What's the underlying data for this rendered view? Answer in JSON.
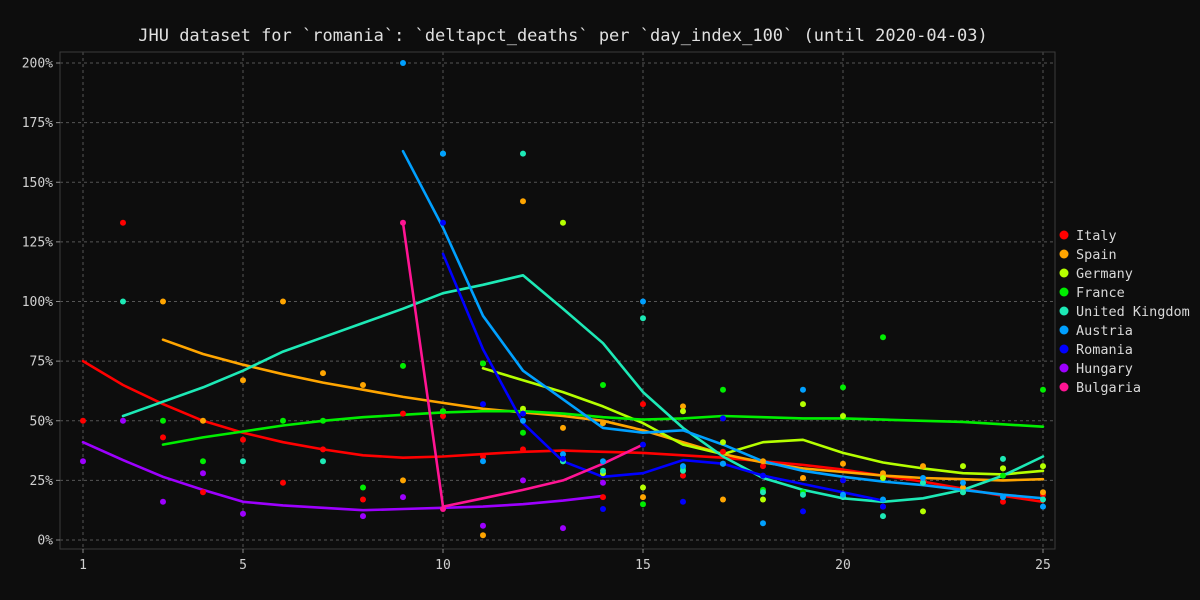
{
  "chart_data": {
    "type": "line",
    "title": "JHU dataset for `romania`: `deltapct_deaths` per `day_index_100` (until 2020-04-03)",
    "xlabel": "",
    "ylabel": "",
    "xlim": [
      1,
      25
    ],
    "ylim": [
      0,
      200
    ],
    "x_ticks": [
      1,
      5,
      10,
      15,
      20,
      25
    ],
    "y_ticks": [
      0,
      25,
      50,
      75,
      100,
      125,
      150,
      175,
      200
    ],
    "y_tick_labels": [
      "0%",
      "25%",
      "50%",
      "75%",
      "100%",
      "125%",
      "150%",
      "175%",
      "200%"
    ],
    "grid": true,
    "legend_position": "right",
    "series": [
      {
        "name": "Italy",
        "color": "#ff0000",
        "points": [
          [
            1,
            50
          ],
          [
            2,
            133
          ],
          [
            3,
            43
          ],
          [
            4,
            20
          ],
          [
            5,
            42
          ],
          [
            6,
            24
          ],
          [
            7,
            38
          ],
          [
            8,
            17
          ],
          [
            9,
            53
          ],
          [
            10,
            52
          ],
          [
            11,
            35
          ],
          [
            12,
            38
          ],
          [
            13,
            33
          ],
          [
            14,
            18
          ],
          [
            15,
            57
          ],
          [
            16,
            27
          ],
          [
            17,
            37
          ],
          [
            18,
            31
          ],
          [
            19,
            26
          ],
          [
            20,
            25
          ],
          [
            21,
            14
          ],
          [
            22,
            25
          ],
          [
            23,
            20
          ],
          [
            24,
            16
          ],
          [
            25,
            19
          ]
        ],
        "trend": [
          [
            1,
            75
          ],
          [
            2,
            65
          ],
          [
            3,
            57
          ],
          [
            4,
            50
          ],
          [
            5,
            45
          ],
          [
            6,
            41
          ],
          [
            7,
            38
          ],
          [
            8,
            35.5
          ],
          [
            9,
            34.5
          ],
          [
            10,
            35
          ],
          [
            11,
            36
          ],
          [
            12,
            37
          ],
          [
            13,
            37.5
          ],
          [
            14,
            37
          ],
          [
            15,
            36.5
          ],
          [
            16,
            35.5
          ],
          [
            17,
            34.5
          ],
          [
            18,
            33
          ],
          [
            19,
            31.5
          ],
          [
            20,
            29.5
          ],
          [
            21,
            27
          ],
          [
            22,
            24.5
          ],
          [
            23,
            21.5
          ],
          [
            24,
            18.5
          ],
          [
            25,
            16
          ]
        ]
      },
      {
        "name": "Spain",
        "color": "#ffa500",
        "points": [
          [
            3,
            100
          ],
          [
            4,
            50
          ],
          [
            5,
            67
          ],
          [
            6,
            100
          ],
          [
            7,
            70
          ],
          [
            8,
            65
          ],
          [
            9,
            25
          ],
          [
            10,
            54
          ],
          [
            11,
            2
          ],
          [
            12,
            142
          ],
          [
            13,
            47
          ],
          [
            14,
            49
          ],
          [
            15,
            18
          ],
          [
            16,
            56
          ],
          [
            17,
            17
          ],
          [
            18,
            33
          ],
          [
            19,
            26
          ],
          [
            20,
            32
          ],
          [
            21,
            28
          ],
          [
            22,
            31
          ],
          [
            23,
            22
          ],
          [
            24,
            30
          ],
          [
            25,
            20
          ]
        ],
        "trend": [
          [
            3,
            84
          ],
          [
            4,
            78
          ],
          [
            5,
            73.5
          ],
          [
            6,
            69.5
          ],
          [
            7,
            66
          ],
          [
            8,
            63
          ],
          [
            9,
            60
          ],
          [
            10,
            57.5
          ],
          [
            11,
            55
          ],
          [
            12,
            53.5
          ],
          [
            13,
            52
          ],
          [
            14,
            50
          ],
          [
            15,
            46
          ],
          [
            16,
            41
          ],
          [
            17,
            36
          ],
          [
            18,
            32.5
          ],
          [
            19,
            30
          ],
          [
            20,
            28.5
          ],
          [
            21,
            27
          ],
          [
            22,
            26
          ],
          [
            23,
            25.5
          ],
          [
            24,
            25
          ],
          [
            25,
            25.5
          ]
        ]
      },
      {
        "name": "Germany",
        "color": "#b5ff00",
        "points": [
          [
            11,
            74
          ],
          [
            12,
            55
          ],
          [
            13,
            133
          ],
          [
            14,
            28
          ],
          [
            15,
            22
          ],
          [
            16,
            54
          ],
          [
            17,
            41
          ],
          [
            18,
            17
          ],
          [
            19,
            57
          ],
          [
            20,
            52
          ],
          [
            21,
            26
          ],
          [
            22,
            12
          ],
          [
            23,
            31
          ],
          [
            24,
            30
          ],
          [
            25,
            31
          ]
        ],
        "trend": [
          [
            11,
            72
          ],
          [
            12,
            67
          ],
          [
            13,
            62
          ],
          [
            14,
            56
          ],
          [
            15,
            49
          ],
          [
            16,
            40
          ],
          [
            17,
            36
          ],
          [
            18,
            41
          ],
          [
            19,
            42
          ],
          [
            20,
            36.5
          ],
          [
            21,
            32.5
          ],
          [
            22,
            30
          ],
          [
            23,
            28
          ],
          [
            24,
            27.5
          ],
          [
            25,
            29
          ]
        ]
      },
      {
        "name": "France",
        "color": "#00ee00",
        "points": [
          [
            3,
            50
          ],
          [
            4,
            33
          ],
          [
            6,
            50
          ],
          [
            7,
            50
          ],
          [
            8,
            22
          ],
          [
            9,
            73
          ],
          [
            10,
            54
          ],
          [
            11,
            74
          ],
          [
            12,
            45
          ],
          [
            13,
            33
          ],
          [
            14,
            65
          ],
          [
            15,
            15
          ],
          [
            16,
            30
          ],
          [
            17,
            63
          ],
          [
            18,
            21
          ],
          [
            19,
            20
          ],
          [
            20,
            64
          ],
          [
            21,
            85
          ],
          [
            22,
            24
          ],
          [
            23,
            20
          ],
          [
            24,
            27
          ],
          [
            25,
            63
          ]
        ],
        "trend": [
          [
            3,
            40
          ],
          [
            4,
            43
          ],
          [
            5,
            45.5
          ],
          [
            6,
            48
          ],
          [
            7,
            50
          ],
          [
            8,
            51.5
          ],
          [
            9,
            52.5
          ],
          [
            10,
            53.5
          ],
          [
            11,
            54
          ],
          [
            12,
            54
          ],
          [
            13,
            53
          ],
          [
            14,
            51.5
          ],
          [
            15,
            50.5
          ],
          [
            16,
            51
          ],
          [
            17,
            52
          ],
          [
            18,
            51.5
          ],
          [
            19,
            51
          ],
          [
            20,
            51
          ],
          [
            21,
            50.5
          ],
          [
            22,
            50
          ],
          [
            23,
            49.5
          ],
          [
            24,
            48.5
          ],
          [
            25,
            47.5
          ]
        ]
      },
      {
        "name": "United Kingdom",
        "color": "#1de9b6",
        "points": [
          [
            2,
            100
          ],
          [
            5,
            33
          ],
          [
            7,
            33
          ],
          [
            10,
            162
          ],
          [
            12,
            162
          ],
          [
            13,
            33
          ],
          [
            14,
            29
          ],
          [
            15,
            93
          ],
          [
            16,
            29
          ],
          [
            17,
            32
          ],
          [
            18,
            20
          ],
          [
            19,
            19
          ],
          [
            20,
            18
          ],
          [
            21,
            10
          ],
          [
            22,
            24
          ],
          [
            23,
            20
          ],
          [
            24,
            34
          ],
          [
            25,
            17
          ]
        ],
        "trend": [
          [
            2,
            52
          ],
          [
            3,
            58
          ],
          [
            4,
            64
          ],
          [
            5,
            71
          ],
          [
            6,
            79
          ],
          [
            7,
            85
          ],
          [
            8,
            91
          ],
          [
            9,
            97
          ],
          [
            10,
            103.5
          ],
          [
            11,
            107
          ],
          [
            12,
            111
          ],
          [
            13,
            97
          ],
          [
            14,
            82.5
          ],
          [
            15,
            62
          ],
          [
            16,
            47
          ],
          [
            17,
            35
          ],
          [
            18,
            26
          ],
          [
            19,
            21
          ],
          [
            20,
            17.5
          ],
          [
            21,
            16
          ],
          [
            22,
            17.5
          ],
          [
            23,
            21
          ],
          [
            24,
            27
          ],
          [
            25,
            35
          ]
        ]
      },
      {
        "name": "Austria",
        "color": "#00a0ff",
        "points": [
          [
            9,
            200
          ],
          [
            10,
            162
          ],
          [
            11,
            33
          ],
          [
            12,
            50
          ],
          [
            13,
            36
          ],
          [
            14,
            33
          ],
          [
            15,
            100
          ],
          [
            16,
            31
          ],
          [
            17,
            32
          ],
          [
            18,
            7
          ],
          [
            19,
            63
          ],
          [
            20,
            19
          ],
          [
            21,
            17
          ],
          [
            22,
            26
          ],
          [
            23,
            24
          ],
          [
            24,
            18
          ],
          [
            25,
            14
          ]
        ],
        "trend": [
          [
            9,
            163
          ],
          [
            10,
            131
          ],
          [
            11,
            94
          ],
          [
            12,
            71
          ],
          [
            13,
            59
          ],
          [
            14,
            47
          ],
          [
            15,
            45
          ],
          [
            16,
            46
          ],
          [
            17,
            40
          ],
          [
            18,
            33
          ],
          [
            19,
            29
          ],
          [
            20,
            26.5
          ],
          [
            21,
            24.5
          ],
          [
            22,
            23
          ],
          [
            23,
            21
          ],
          [
            24,
            19
          ],
          [
            25,
            17.5
          ]
        ]
      },
      {
        "name": "Romania",
        "color": "#0000ff",
        "points": [
          [
            10,
            133
          ],
          [
            11,
            57
          ],
          [
            12,
            53
          ],
          [
            13,
            34
          ],
          [
            14,
            13
          ],
          [
            15,
            40
          ],
          [
            16,
            16
          ],
          [
            17,
            51
          ],
          [
            18,
            27
          ],
          [
            19,
            12
          ],
          [
            20,
            25
          ],
          [
            21,
            14
          ]
        ],
        "trend": [
          [
            10,
            120
          ],
          [
            11,
            80
          ],
          [
            12,
            49
          ],
          [
            13,
            33
          ],
          [
            14,
            26.5
          ],
          [
            15,
            28
          ],
          [
            16,
            33.5
          ],
          [
            17,
            32
          ],
          [
            18,
            27
          ],
          [
            19,
            23.5
          ],
          [
            20,
            20
          ],
          [
            21,
            16.5
          ]
        ]
      },
      {
        "name": "Hungary",
        "color": "#9d00ff",
        "points": [
          [
            1,
            33
          ],
          [
            2,
            50
          ],
          [
            3,
            16
          ],
          [
            4,
            28
          ],
          [
            5,
            11
          ],
          [
            8,
            10
          ],
          [
            9,
            18
          ],
          [
            11,
            6
          ],
          [
            12,
            25
          ],
          [
            13,
            5
          ],
          [
            14,
            24
          ]
        ],
        "trend": [
          [
            1,
            41
          ],
          [
            2,
            33.5
          ],
          [
            3,
            26.5
          ],
          [
            4,
            21
          ],
          [
            5,
            16
          ],
          [
            6,
            14.5
          ],
          [
            7,
            13.5
          ],
          [
            8,
            12.5
          ],
          [
            9,
            13
          ],
          [
            10,
            13.5
          ],
          [
            11,
            14
          ],
          [
            12,
            15
          ],
          [
            13,
            16.5
          ],
          [
            14,
            18.5
          ]
        ]
      },
      {
        "name": "Bulgaria",
        "color": "#ff1493",
        "points": [
          [
            9,
            133
          ],
          [
            10,
            13
          ]
        ],
        "trend": [
          [
            9,
            133
          ],
          [
            10,
            14
          ],
          [
            11,
            17.5
          ],
          [
            12,
            21
          ],
          [
            13,
            25
          ],
          [
            14,
            32
          ],
          [
            15,
            40
          ]
        ]
      }
    ]
  }
}
